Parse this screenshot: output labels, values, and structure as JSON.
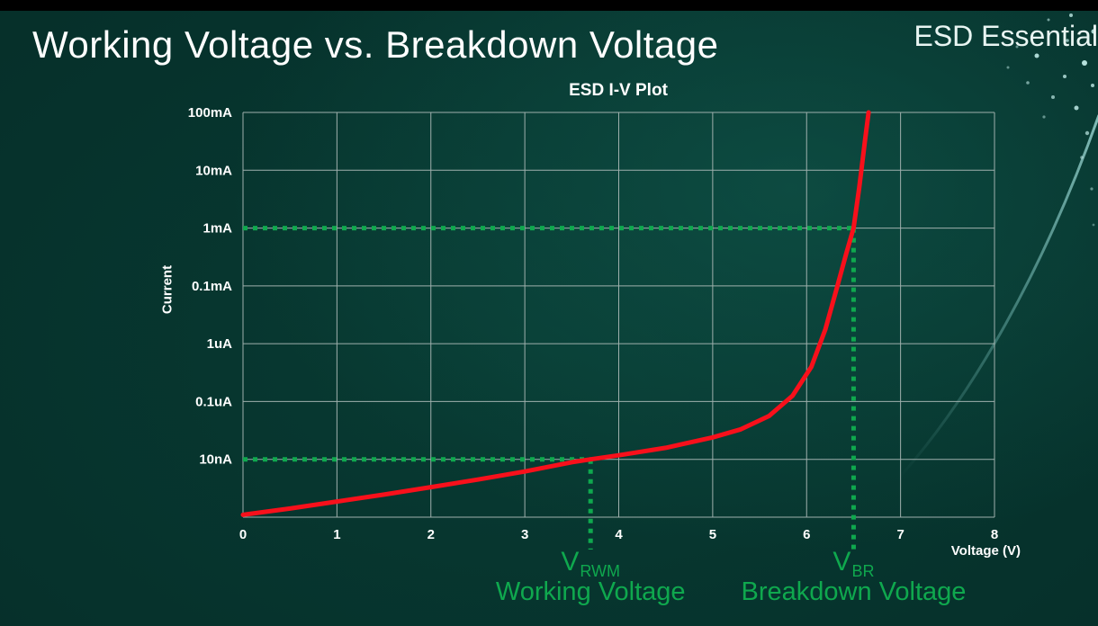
{
  "page": {
    "title": "Working Voltage vs. Breakdown Voltage",
    "brand": "ESD Essential"
  },
  "colors": {
    "background_teal": "#07382f",
    "top_bar": "#000000",
    "grid": "#9fb0ad",
    "axis_text": "#ffffff",
    "curve_red": "#f8101b",
    "accent_green": "#0fa84e",
    "decor_dots": "#bfeae6"
  },
  "chart_data": {
    "type": "line",
    "title": "ESD I-V Plot",
    "xlabel": "Voltage (V)",
    "ylabel": "Current",
    "x_range": [
      0,
      8
    ],
    "x_ticks": [
      "0",
      "1",
      "2",
      "3",
      "4",
      "5",
      "6",
      "7",
      "8"
    ],
    "y_tick_labels_top_to_bottom": [
      "100mA",
      "10mA",
      "1mA",
      "0.1mA",
      "1uA",
      "0.1uA",
      "10nA"
    ],
    "y_scale_note": "stylized log-style grid; bottom axis is one gridline below 10nA (gridrow 0), 10nA = gridrow 1, 100mA = gridrow 7",
    "grid": true,
    "legend": "none",
    "series": [
      {
        "name": "ESD device I-V curve",
        "color": "#f8101b",
        "points_v": [
          0,
          0.5,
          1,
          1.5,
          2,
          2.5,
          3,
          3.5,
          3.7,
          4.0,
          4.5,
          5.0,
          5.3,
          5.6,
          5.85,
          6.05,
          6.2,
          6.32,
          6.42,
          6.5,
          6.56,
          6.62,
          6.66
        ],
        "points_gridrow": [
          0.04,
          0.15,
          0.27,
          0.39,
          0.52,
          0.65,
          0.79,
          0.95,
          1.0,
          1.07,
          1.2,
          1.38,
          1.52,
          1.75,
          2.1,
          2.6,
          3.25,
          3.95,
          4.55,
          5.0,
          5.7,
          6.5,
          7.0
        ]
      }
    ],
    "annotations": [
      {
        "id": "vrwm",
        "symbol": "V",
        "subscript": "RWM",
        "caption": "Working Voltage",
        "voltage": 3.7,
        "current": "10nA",
        "color": "#0fa84e"
      },
      {
        "id": "vbr",
        "symbol": "V",
        "subscript": "BR",
        "caption": "Breakdown Voltage",
        "voltage": 6.5,
        "current": "1mA",
        "color": "#0fa84e"
      }
    ]
  }
}
